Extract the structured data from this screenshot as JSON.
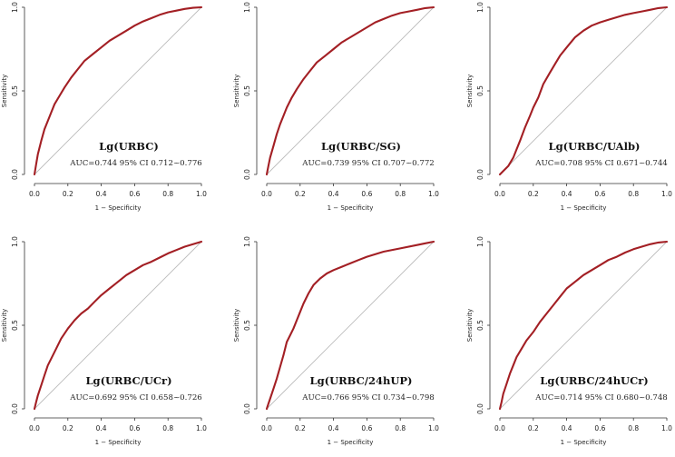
{
  "colors": {
    "roc": "#a31f24",
    "reference": "#bdbdbd",
    "axis": "#333333"
  },
  "chart_data": [
    {
      "type": "line",
      "title": "Lg(URBC)",
      "annotation": "AUC=0.744 95% CI 0.712~0.776",
      "xlabel": "1 − Specificity",
      "ylabel": "Sensitivity",
      "xlim": [
        0,
        1
      ],
      "ylim": [
        0,
        1
      ],
      "x_ticks": [
        "0.0",
        "0.2",
        "0.4",
        "0.6",
        "0.8",
        "1.0"
      ],
      "y_ticks": [
        "0.0",
        "0.5",
        "1.0"
      ],
      "series": [
        {
          "name": "ROC",
          "x": [
            0,
            0.01,
            0.02,
            0.04,
            0.06,
            0.08,
            0.1,
            0.12,
            0.15,
            0.18,
            0.22,
            0.26,
            0.3,
            0.35,
            0.4,
            0.45,
            0.5,
            0.55,
            0.6,
            0.65,
            0.7,
            0.75,
            0.8,
            0.85,
            0.9,
            0.95,
            1.0
          ],
          "y": [
            0,
            0.06,
            0.12,
            0.2,
            0.27,
            0.32,
            0.37,
            0.42,
            0.47,
            0.52,
            0.58,
            0.63,
            0.68,
            0.72,
            0.76,
            0.8,
            0.83,
            0.86,
            0.89,
            0.915,
            0.935,
            0.955,
            0.97,
            0.98,
            0.99,
            0.997,
            1.0
          ]
        },
        {
          "name": "Reference",
          "x": [
            0,
            1
          ],
          "y": [
            0,
            1
          ]
        }
      ]
    },
    {
      "type": "line",
      "title": "Lg(URBC/SG)",
      "annotation": "AUC=0.739 95% CI 0.707~0.772",
      "xlabel": "1 − Specificity",
      "ylabel": "Sensitivity",
      "xlim": [
        0,
        1
      ],
      "ylim": [
        0,
        1
      ],
      "x_ticks": [
        "0.0",
        "0.2",
        "0.4",
        "0.6",
        "0.8",
        "1.0"
      ],
      "y_ticks": [
        "0.0",
        "0.5",
        "1.0"
      ],
      "series": [
        {
          "name": "ROC",
          "x": [
            0,
            0.01,
            0.02,
            0.04,
            0.06,
            0.08,
            0.1,
            0.12,
            0.15,
            0.18,
            0.22,
            0.26,
            0.3,
            0.35,
            0.4,
            0.45,
            0.5,
            0.55,
            0.6,
            0.65,
            0.7,
            0.75,
            0.8,
            0.85,
            0.9,
            0.95,
            1.0
          ],
          "y": [
            0,
            0.05,
            0.1,
            0.17,
            0.24,
            0.3,
            0.35,
            0.4,
            0.46,
            0.51,
            0.57,
            0.62,
            0.67,
            0.71,
            0.75,
            0.79,
            0.82,
            0.85,
            0.88,
            0.91,
            0.93,
            0.95,
            0.965,
            0.975,
            0.985,
            0.995,
            1.0
          ]
        },
        {
          "name": "Reference",
          "x": [
            0,
            1
          ],
          "y": [
            0,
            1
          ]
        }
      ]
    },
    {
      "type": "line",
      "title": "Lg(URBC/UAlb)",
      "annotation": "AUC=0.708 95% CI 0.671~0.744",
      "xlabel": "1 − Specificity",
      "ylabel": "Sensitivity",
      "xlim": [
        0,
        1
      ],
      "ylim": [
        0,
        1
      ],
      "x_ticks": [
        "0.0",
        "0.2",
        "0.4",
        "0.6",
        "0.8",
        "1.0"
      ],
      "y_ticks": [
        "0.0",
        "0.5",
        "1.0"
      ],
      "series": [
        {
          "name": "ROC",
          "x": [
            0,
            0.02,
            0.05,
            0.08,
            0.1,
            0.12,
            0.15,
            0.18,
            0.2,
            0.23,
            0.26,
            0.3,
            0.33,
            0.36,
            0.4,
            0.45,
            0.5,
            0.55,
            0.6,
            0.65,
            0.7,
            0.75,
            0.8,
            0.85,
            0.9,
            0.95,
            1.0
          ],
          "y": [
            0,
            0.02,
            0.05,
            0.1,
            0.15,
            0.2,
            0.28,
            0.35,
            0.4,
            0.46,
            0.54,
            0.61,
            0.66,
            0.71,
            0.76,
            0.82,
            0.86,
            0.89,
            0.91,
            0.925,
            0.94,
            0.955,
            0.965,
            0.975,
            0.985,
            0.995,
            1.0
          ]
        },
        {
          "name": "Reference",
          "x": [
            0,
            1
          ],
          "y": [
            0,
            1
          ]
        }
      ]
    },
    {
      "type": "line",
      "title": "Lg(URBC/UCr)",
      "annotation": "AUC=0.692 95% CI 0.658~0.726",
      "xlabel": "1 − Specificity",
      "ylabel": "Sensitivity",
      "xlim": [
        0,
        1
      ],
      "ylim": [
        0,
        1
      ],
      "x_ticks": [
        "0.0",
        "0.2",
        "0.4",
        "0.6",
        "0.8",
        "1.0"
      ],
      "y_ticks": [
        "0.0",
        "0.5",
        "1.0"
      ],
      "series": [
        {
          "name": "ROC",
          "x": [
            0,
            0.01,
            0.02,
            0.04,
            0.06,
            0.08,
            0.1,
            0.13,
            0.16,
            0.2,
            0.24,
            0.28,
            0.32,
            0.36,
            0.4,
            0.45,
            0.5,
            0.55,
            0.6,
            0.65,
            0.7,
            0.75,
            0.8,
            0.85,
            0.9,
            0.95,
            1.0
          ],
          "y": [
            0,
            0.04,
            0.08,
            0.14,
            0.2,
            0.26,
            0.3,
            0.36,
            0.42,
            0.48,
            0.53,
            0.57,
            0.6,
            0.64,
            0.68,
            0.72,
            0.76,
            0.8,
            0.83,
            0.86,
            0.88,
            0.905,
            0.93,
            0.95,
            0.97,
            0.985,
            1.0
          ]
        },
        {
          "name": "Reference",
          "x": [
            0,
            1
          ],
          "y": [
            0,
            1
          ]
        }
      ]
    },
    {
      "type": "line",
      "title": "Lg(URBC/24hUP)",
      "annotation": "AUC=0.766 95% CI 0.734~0.798",
      "xlabel": "1 − Specificity",
      "ylabel": "Sensitivity",
      "xlim": [
        0,
        1
      ],
      "ylim": [
        0,
        1
      ],
      "x_ticks": [
        "0.0",
        "0.2",
        "0.4",
        "0.6",
        "0.8",
        "1.0"
      ],
      "y_ticks": [
        "0.0",
        "0.5",
        "1.0"
      ],
      "series": [
        {
          "name": "ROC",
          "x": [
            0,
            0.01,
            0.02,
            0.04,
            0.06,
            0.08,
            0.1,
            0.12,
            0.14,
            0.16,
            0.18,
            0.2,
            0.22,
            0.25,
            0.28,
            0.32,
            0.36,
            0.4,
            0.45,
            0.5,
            0.55,
            0.6,
            0.7,
            0.8,
            0.9,
            0.95,
            1.0
          ],
          "y": [
            0,
            0.03,
            0.06,
            0.12,
            0.18,
            0.25,
            0.32,
            0.4,
            0.44,
            0.48,
            0.53,
            0.58,
            0.63,
            0.69,
            0.74,
            0.78,
            0.81,
            0.83,
            0.85,
            0.87,
            0.89,
            0.91,
            0.94,
            0.96,
            0.98,
            0.99,
            1.0
          ]
        },
        {
          "name": "Reference",
          "x": [
            0,
            1
          ],
          "y": [
            0,
            1
          ]
        }
      ]
    },
    {
      "type": "line",
      "title": "Lg(URBC/24hUCr)",
      "annotation": "AUC=0.714 95% CI 0.680~0.748",
      "xlabel": "1 − Specificity",
      "ylabel": "Sensitivity",
      "xlim": [
        0,
        1
      ],
      "ylim": [
        0,
        1
      ],
      "x_ticks": [
        "0.0",
        "0.2",
        "0.4",
        "0.6",
        "0.8",
        "1.0"
      ],
      "y_ticks": [
        "0.0",
        "0.5",
        "1.0"
      ],
      "series": [
        {
          "name": "ROC",
          "x": [
            0,
            0.01,
            0.02,
            0.04,
            0.06,
            0.08,
            0.1,
            0.13,
            0.16,
            0.2,
            0.24,
            0.28,
            0.32,
            0.36,
            0.4,
            0.45,
            0.5,
            0.55,
            0.6,
            0.65,
            0.7,
            0.75,
            0.8,
            0.85,
            0.9,
            0.95,
            1.0
          ],
          "y": [
            0,
            0.04,
            0.09,
            0.15,
            0.21,
            0.26,
            0.31,
            0.36,
            0.41,
            0.46,
            0.52,
            0.57,
            0.62,
            0.67,
            0.72,
            0.76,
            0.8,
            0.83,
            0.86,
            0.89,
            0.91,
            0.935,
            0.955,
            0.97,
            0.985,
            0.995,
            1.0
          ]
        },
        {
          "name": "Reference",
          "x": [
            0,
            1
          ],
          "y": [
            0,
            1
          ]
        }
      ]
    }
  ]
}
